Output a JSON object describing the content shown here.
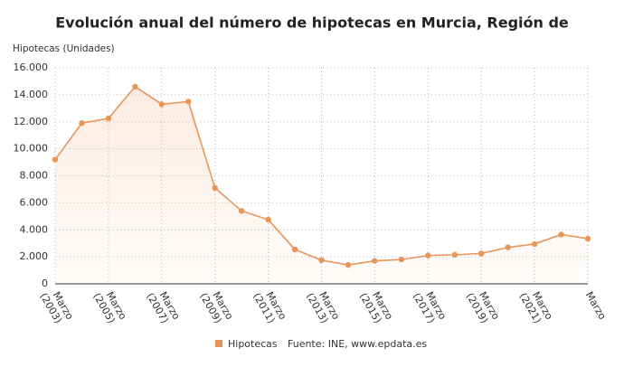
{
  "chart_data": {
    "type": "line",
    "title": "Evolución anual del número de hipotecas en Murcia, Región de",
    "y_label": "Hipotecas (Unidades)",
    "source": "Fuente: INE, www.epdata.es",
    "categories": [
      "Marzo (2003)",
      null,
      "Marzo (2005)",
      null,
      "Marzo (2007)",
      null,
      "Marzo (2009)",
      null,
      "Marzo (2011)",
      null,
      "Marzo (2013)",
      null,
      "Marzo (2015)",
      null,
      "Marzo (2017)",
      null,
      "Marzo (2019)",
      null,
      "Marzo (2021)",
      null,
      "Marzo"
    ],
    "series": [
      {
        "name": "Hipotecas",
        "color": "#e8955a",
        "values": [
          9200,
          11900,
          12250,
          14600,
          13300,
          13500,
          7100,
          5400,
          4750,
          2550,
          1750,
          1400,
          1700,
          1800,
          2100,
          2150,
          2250,
          2700,
          2950,
          3650,
          3350
        ]
      }
    ],
    "ylim": [
      0,
      16000
    ],
    "yticks": [
      0,
      {
        "value": 2000,
        "label": "2.000"
      },
      {
        "value": 4000,
        "label": "4.000"
      },
      {
        "value": 6000,
        "label": "6.000"
      },
      {
        "value": 8000,
        "label": "8.000"
      },
      {
        "value": 10000,
        "label": "10.000"
      },
      {
        "value": 12000,
        "label": "12.000"
      },
      {
        "value": 14000,
        "label": "14.000"
      },
      {
        "value": 16000,
        "label": "16.000"
      }
    ],
    "grid": true
  }
}
